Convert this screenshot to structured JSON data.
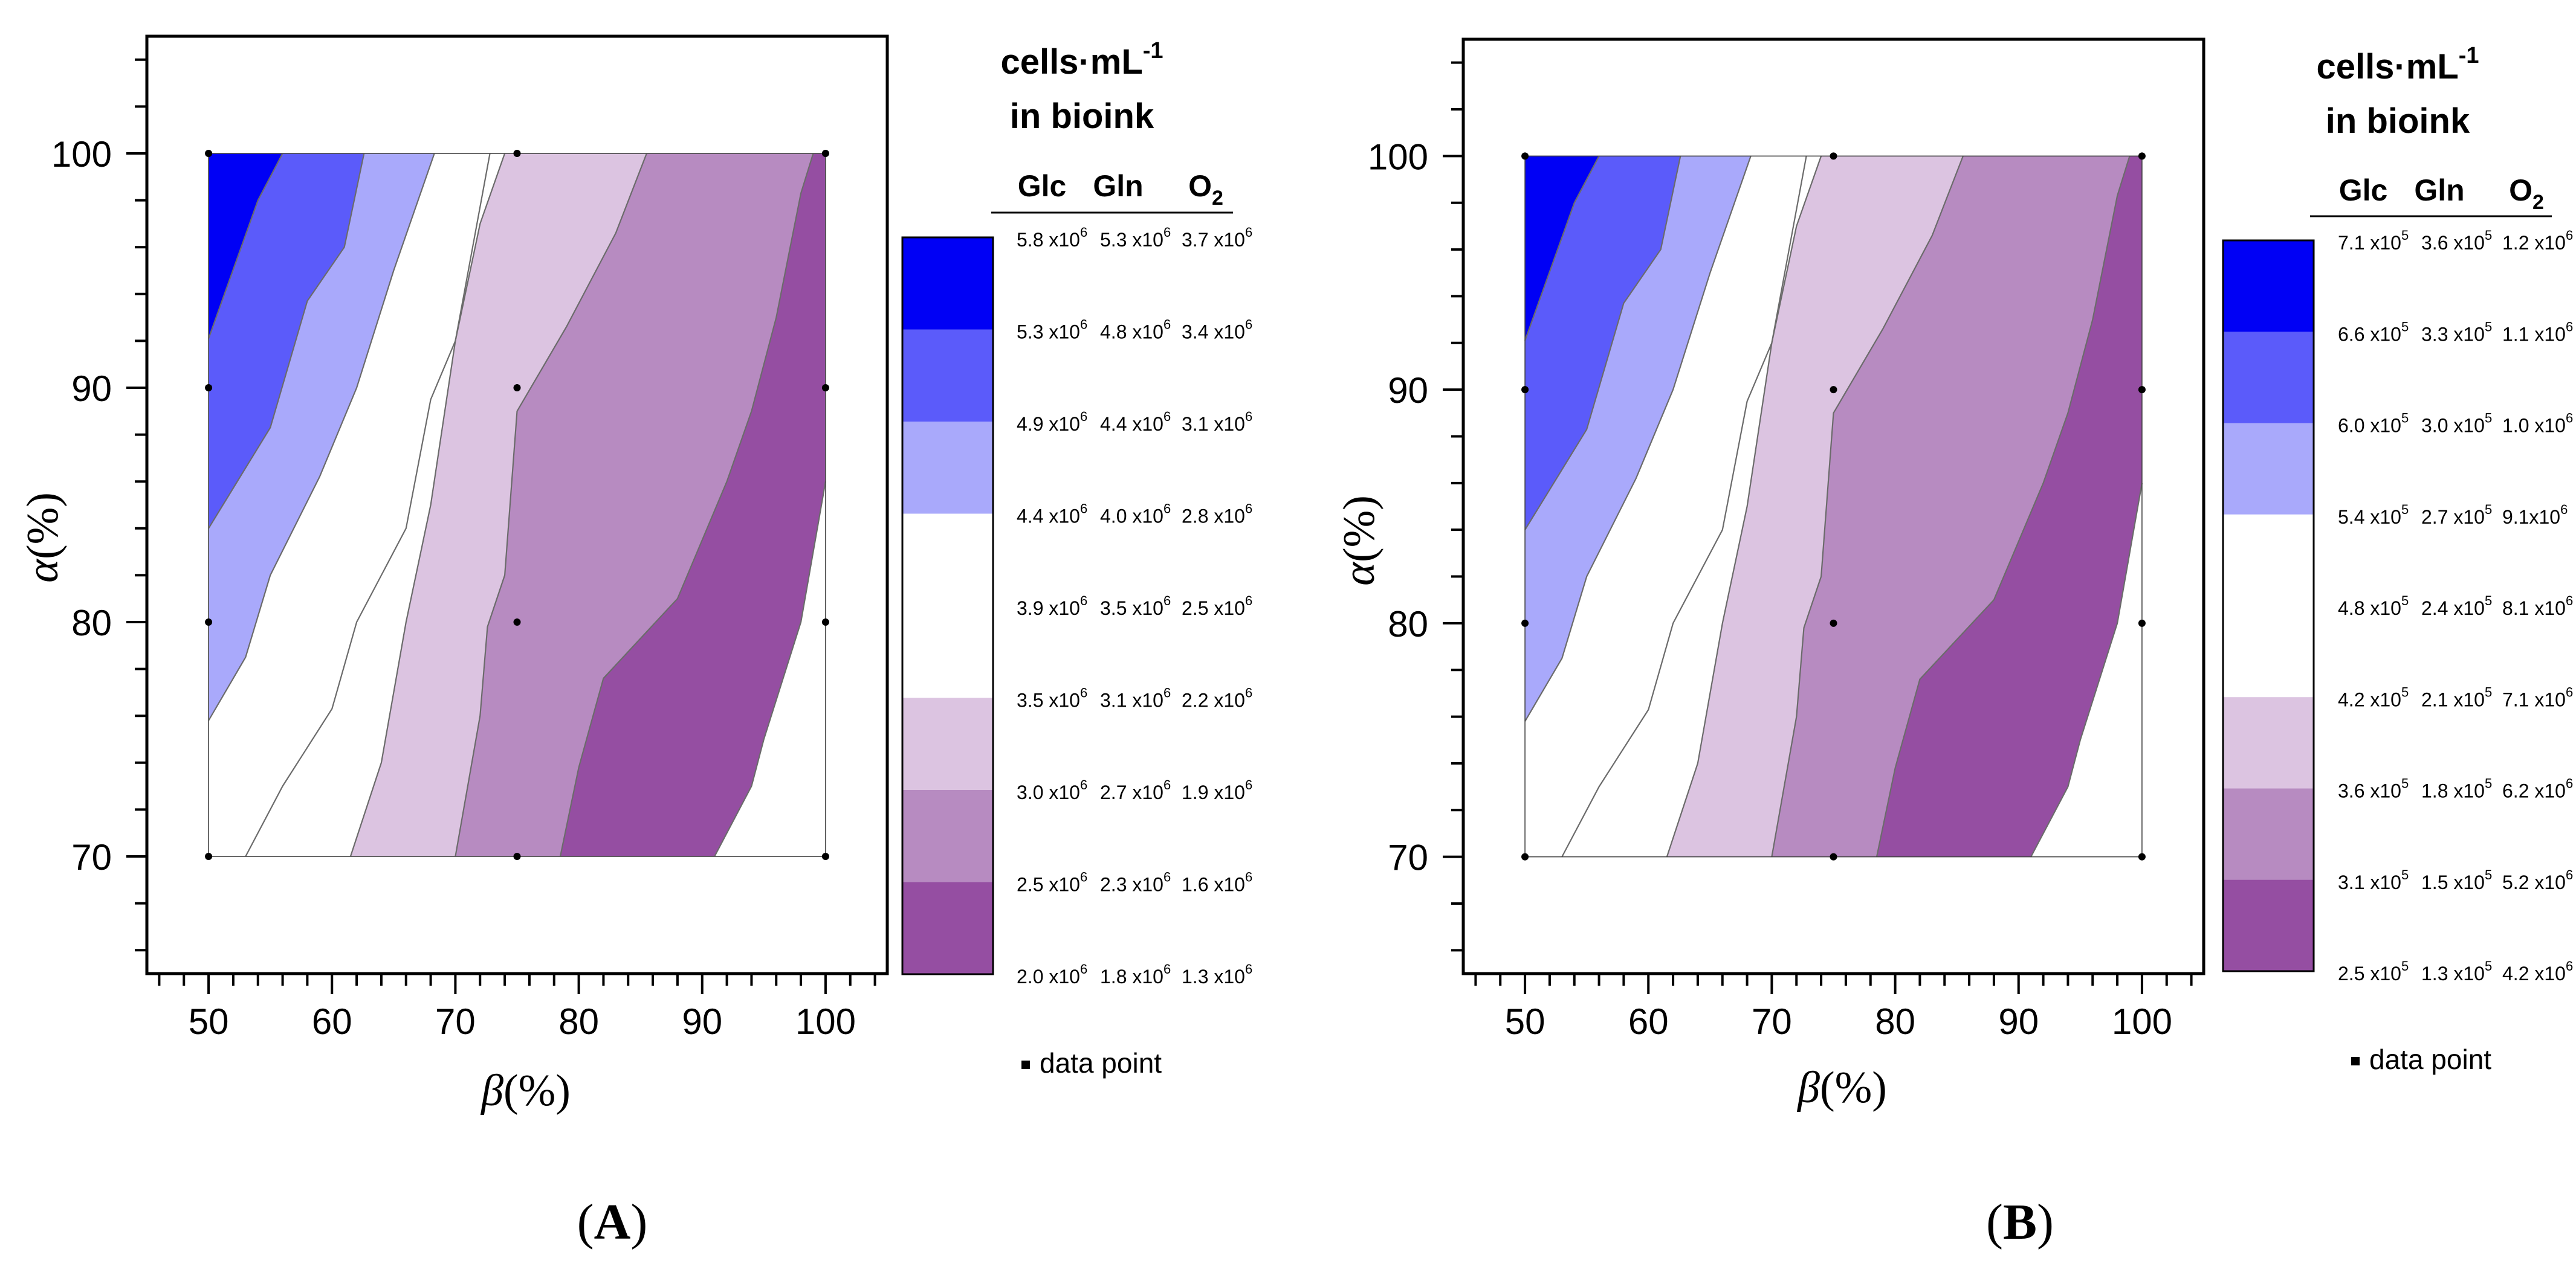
{
  "figure": {
    "label_open": "(",
    "label_close": ")"
  },
  "chart_data": [
    {
      "type": "contour",
      "panel_label": "A",
      "xlabel_symbol": "β",
      "xlabel_unit": "(%)",
      "ylabel_symbol": "α",
      "ylabel_unit": "(%)",
      "xlim": [
        45,
        105
      ],
      "ylim": [
        65,
        105
      ],
      "x_ticks": [
        50,
        60,
        70,
        80,
        90,
        100
      ],
      "y_ticks": [
        70,
        80,
        90,
        100
      ],
      "data_points": [
        [
          50,
          70
        ],
        [
          50,
          80
        ],
        [
          50,
          90
        ],
        [
          50,
          100
        ],
        [
          75,
          70
        ],
        [
          75,
          80
        ],
        [
          75,
          90
        ],
        [
          75,
          100
        ],
        [
          100,
          70
        ],
        [
          100,
          80
        ],
        [
          100,
          90
        ],
        [
          100,
          100
        ]
      ],
      "legend": {
        "title_line1": "cells·mL",
        "title_sup": "-1",
        "title_line2": "in bioink",
        "columns": [
          "Glc",
          "Gln",
          "O2"
        ],
        "level_labels": [
          [
            "5.8 x10",
            "5.3 x10",
            "3.7 x10"
          ],
          [
            "5.3 x10",
            "4.8 x10",
            "3.4 x10"
          ],
          [
            "4.9 x10",
            "4.4 x10",
            "3.1 x10"
          ],
          [
            "4.4 x10",
            "4.0 x10",
            "2.8 x10"
          ],
          [
            "3.9 x10",
            "3.5 x10",
            "2.5 x10"
          ],
          [
            "3.5 x10",
            "3.1 x10",
            "2.2 x10"
          ],
          [
            "3.0 x10",
            "2.7 x10",
            "1.9 x10"
          ],
          [
            "2.5 x10",
            "2.3 x10",
            "1.6 x10"
          ],
          [
            "2.0 x10",
            "1.8 x10",
            "1.3 x10"
          ]
        ],
        "level_exponents": [
          [
            "6",
            "6",
            "6"
          ],
          [
            "6",
            "6",
            "6"
          ],
          [
            "6",
            "6",
            "6"
          ],
          [
            "6",
            "6",
            "6"
          ],
          [
            "6",
            "6",
            "6"
          ],
          [
            "6",
            "6",
            "6"
          ],
          [
            "6",
            "6",
            "6"
          ],
          [
            "6",
            "6",
            "6"
          ],
          [
            "6",
            "6",
            "6"
          ]
        ],
        "band_colors": [
          "#0000F5",
          "#5B5BFA",
          "#A9A9FB",
          "#FFFFFF",
          "#FFFFFF",
          "#DCC4E1",
          "#B78BC1",
          "#954EA2"
        ],
        "data_point_label": "data point"
      },
      "contour_lines": [
        [
          [
            50,
            92.1
          ],
          [
            54,
            98
          ],
          [
            56,
            100
          ]
        ],
        [
          [
            50,
            84
          ],
          [
            55,
            88.3
          ],
          [
            58,
            93.7
          ],
          [
            61,
            96
          ],
          [
            62.6,
            100
          ]
        ],
        [
          [
            50,
            75.8
          ],
          [
            53,
            78.5
          ],
          [
            55,
            82
          ],
          [
            59,
            86.2
          ],
          [
            62,
            90
          ],
          [
            65,
            95
          ],
          [
            68.3,
            100
          ]
        ],
        [
          [
            53,
            70
          ],
          [
            56,
            73
          ],
          [
            60,
            76.3
          ],
          [
            62,
            80
          ],
          [
            66,
            84
          ],
          [
            68,
            89.5
          ],
          [
            70,
            92
          ],
          [
            72.8,
            100
          ]
        ],
        [
          [
            61.5,
            70
          ],
          [
            64,
            74
          ],
          [
            66,
            80
          ],
          [
            68,
            85
          ],
          [
            70,
            92
          ],
          [
            72,
            97
          ],
          [
            74,
            100
          ]
        ],
        [
          [
            70,
            70
          ],
          [
            72,
            76
          ],
          [
            72.6,
            79.8
          ],
          [
            74,
            82
          ],
          [
            75,
            89
          ],
          [
            79,
            92.6
          ],
          [
            83,
            96.6
          ],
          [
            85.5,
            100
          ]
        ],
        [
          [
            78.5,
            70
          ],
          [
            80,
            73.8
          ],
          [
            82,
            77.6
          ],
          [
            88,
            81
          ],
          [
            92,
            86
          ],
          [
            94,
            89
          ],
          [
            96,
            93
          ],
          [
            98,
            98.3
          ],
          [
            99,
            100
          ]
        ],
        [
          [
            91,
            70
          ],
          [
            94,
            73
          ],
          [
            95,
            75
          ],
          [
            98,
            80
          ],
          [
            100,
            86
          ]
        ]
      ]
    },
    {
      "type": "contour",
      "panel_label": "B",
      "xlabel_symbol": "β",
      "xlabel_unit": "(%)",
      "ylabel_symbol": "α",
      "ylabel_unit": "(%)",
      "xlim": [
        45,
        105
      ],
      "ylim": [
        65,
        105
      ],
      "x_ticks": [
        50,
        60,
        70,
        80,
        90,
        100
      ],
      "y_ticks": [
        70,
        80,
        90,
        100
      ],
      "data_points": [
        [
          50,
          70
        ],
        [
          50,
          80
        ],
        [
          50,
          90
        ],
        [
          50,
          100
        ],
        [
          75,
          70
        ],
        [
          75,
          80
        ],
        [
          75,
          90
        ],
        [
          75,
          100
        ],
        [
          100,
          70
        ],
        [
          100,
          80
        ],
        [
          100,
          90
        ],
        [
          100,
          100
        ]
      ],
      "legend": {
        "title_line1": "cells·mL",
        "title_sup": "-1",
        "title_line2": "in bioink",
        "columns": [
          "Glc",
          "Gln",
          "O2"
        ],
        "level_labels": [
          [
            "7.1 x10",
            "3.6 x10",
            "1.2 x10"
          ],
          [
            "6.6 x10",
            "3.3 x10",
            "1.1 x10"
          ],
          [
            "6.0 x10",
            "3.0 x10",
            "1.0 x10"
          ],
          [
            "5.4 x10",
            "2.7 x10",
            "9.1x10"
          ],
          [
            "4.8 x10",
            "2.4 x10",
            "8.1 x10"
          ],
          [
            "4.2 x10",
            "2.1 x10",
            "7.1 x10"
          ],
          [
            "3.6 x10",
            "1.8 x10",
            "6.2 x10"
          ],
          [
            "3.1 x10",
            "1.5 x10",
            "5.2 x10"
          ],
          [
            "2.5 x10",
            "1.3 x10",
            "4.2 x10"
          ]
        ],
        "level_exponents": [
          [
            "5",
            "5",
            "6"
          ],
          [
            "5",
            "5",
            "6"
          ],
          [
            "5",
            "5",
            "6"
          ],
          [
            "5",
            "5",
            "6"
          ],
          [
            "5",
            "5",
            "6"
          ],
          [
            "5",
            "5",
            "6"
          ],
          [
            "5",
            "5",
            "6"
          ],
          [
            "5",
            "5",
            "6"
          ],
          [
            "5",
            "5",
            "6"
          ]
        ],
        "band_colors": [
          "#0000F5",
          "#5B5BFA",
          "#A9A9FB",
          "#FFFFFF",
          "#FFFFFF",
          "#DCC4E1",
          "#B78BC1",
          "#954EA2"
        ],
        "data_point_label": "data point"
      },
      "contour_lines": [
        [
          [
            50,
            92.1
          ],
          [
            54,
            98
          ],
          [
            56,
            100
          ]
        ],
        [
          [
            50,
            84
          ],
          [
            55,
            88.3
          ],
          [
            58,
            93.7
          ],
          [
            61,
            96
          ],
          [
            62.6,
            100
          ]
        ],
        [
          [
            50,
            75.8
          ],
          [
            53,
            78.5
          ],
          [
            55,
            82
          ],
          [
            59,
            86.2
          ],
          [
            62,
            90
          ],
          [
            65,
            95
          ],
          [
            68.3,
            100
          ]
        ],
        [
          [
            53,
            70
          ],
          [
            56,
            73
          ],
          [
            60,
            76.3
          ],
          [
            62,
            80
          ],
          [
            66,
            84
          ],
          [
            68,
            89.5
          ],
          [
            70,
            92
          ],
          [
            72.8,
            100
          ]
        ],
        [
          [
            61.5,
            70
          ],
          [
            64,
            74
          ],
          [
            66,
            80
          ],
          [
            68,
            85
          ],
          [
            70,
            92
          ],
          [
            72,
            97
          ],
          [
            74,
            100
          ]
        ],
        [
          [
            70,
            70
          ],
          [
            72,
            76
          ],
          [
            72.6,
            79.8
          ],
          [
            74,
            82
          ],
          [
            75,
            89
          ],
          [
            79,
            92.6
          ],
          [
            83,
            96.6
          ],
          [
            85.5,
            100
          ]
        ],
        [
          [
            78.5,
            70
          ],
          [
            80,
            73.8
          ],
          [
            82,
            77.6
          ],
          [
            88,
            81
          ],
          [
            92,
            86
          ],
          [
            94,
            89
          ],
          [
            96,
            93
          ],
          [
            98,
            98.3
          ],
          [
            99,
            100
          ]
        ],
        [
          [
            91,
            70
          ],
          [
            94,
            73
          ],
          [
            95,
            75
          ],
          [
            98,
            80
          ],
          [
            100,
            86
          ]
        ]
      ]
    }
  ]
}
